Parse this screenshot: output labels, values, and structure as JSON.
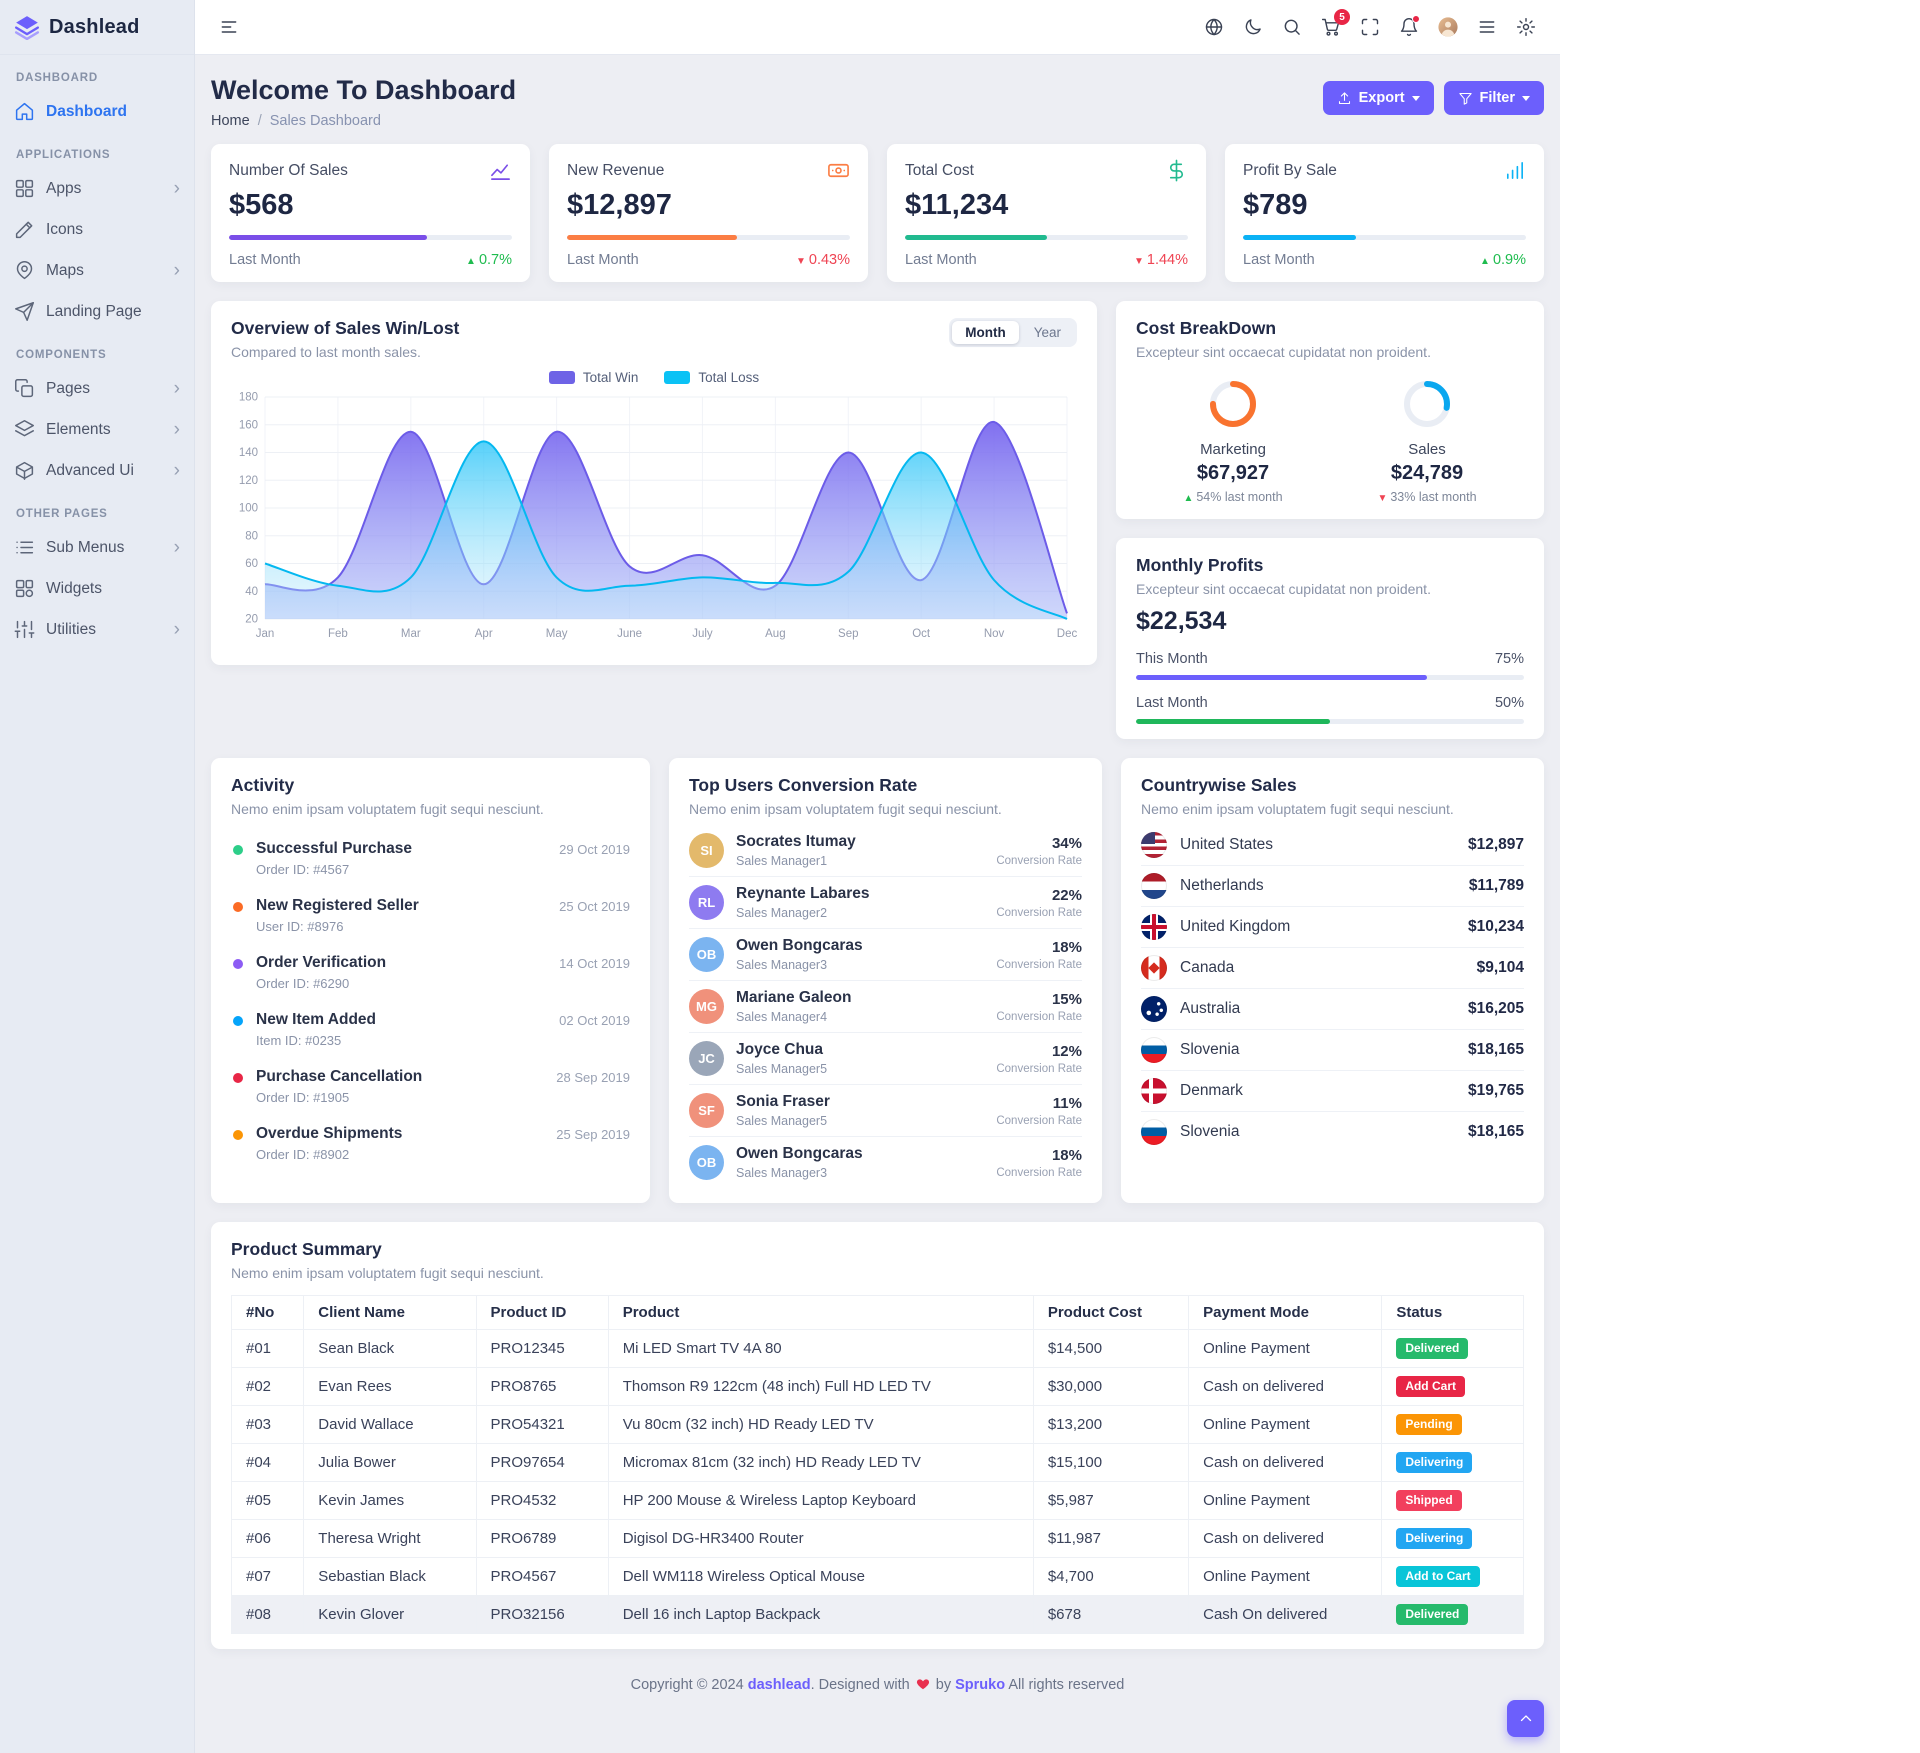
{
  "app": {
    "name": "Dashlead"
  },
  "sidebar": {
    "sections": [
      {
        "label": "DASHBOARD",
        "items": [
          {
            "label": "Dashboard",
            "icon": "home-icon",
            "state": "active"
          }
        ]
      },
      {
        "label": "APPLICATIONS",
        "items": [
          {
            "label": "Apps",
            "icon": "grid-icon",
            "arrow": true
          },
          {
            "label": "Icons",
            "icon": "pen-icon"
          },
          {
            "label": "Maps",
            "icon": "map-pin-icon",
            "arrow": true
          },
          {
            "label": "Landing Page",
            "icon": "plane-icon"
          }
        ]
      },
      {
        "label": "COMPONENTS",
        "items": [
          {
            "label": "Pages",
            "icon": "pages-icon",
            "arrow": true
          },
          {
            "label": "Elements",
            "icon": "layers-icon",
            "arrow": true
          },
          {
            "label": "Advanced Ui",
            "icon": "box-icon",
            "arrow": true
          }
        ]
      },
      {
        "label": "OTHER PAGES",
        "items": [
          {
            "label": "Sub Menus",
            "icon": "list-icon",
            "arrow": true
          },
          {
            "label": "Widgets",
            "icon": "widgets-icon"
          },
          {
            "label": "Utilities",
            "icon": "sliders-icon",
            "arrow": true
          }
        ]
      }
    ]
  },
  "header": {
    "icons": [
      {
        "name": "globe-icon"
      },
      {
        "name": "moon-icon"
      },
      {
        "name": "search-icon"
      },
      {
        "name": "cart-icon",
        "badge": "5"
      },
      {
        "name": "expand-icon"
      },
      {
        "name": "bell-icon",
        "dot": true
      },
      {
        "name": "avatar"
      },
      {
        "name": "sidenav-icon"
      },
      {
        "name": "gear-icon"
      }
    ]
  },
  "page": {
    "title": "Welcome To Dashboard",
    "breadcrumb": {
      "home": "Home",
      "separator": "/",
      "current": "Sales Dashboard"
    },
    "actions": {
      "export": "Export",
      "filter": "Filter"
    }
  },
  "stats": [
    {
      "label": "Number Of Sales",
      "icon": "chart-line-icon",
      "value": "$568",
      "color": "#7a4ee8",
      "progress": "70%",
      "period": "Last Month",
      "delta": "0.7%",
      "direction": "up"
    },
    {
      "label": "New Revenue",
      "icon": "cash-icon",
      "value": "$12,897",
      "color": "#fb7d44",
      "progress": "60%",
      "period": "Last Month",
      "delta": "0.43%",
      "direction": "down"
    },
    {
      "label": "Total Cost",
      "icon": "dollar-icon",
      "value": "$11,234",
      "color": "#21ba8f",
      "progress": "50%",
      "period": "Last Month",
      "delta": "1.44%",
      "direction": "down"
    },
    {
      "label": "Profit By Sale",
      "icon": "bar-chart-icon",
      "value": "$789",
      "color": "#0bb2f5",
      "progress": "40%",
      "period": "Last Month",
      "delta": "0.9%",
      "direction": "up"
    }
  ],
  "sales_chart": {
    "title": "Overview of Sales Win/Lost",
    "subtitle": "Compared to last month sales.",
    "legend": [
      {
        "label": "Total Win",
        "color": "#6e63e6"
      },
      {
        "label": "Total Loss",
        "color": "#0bc2f5"
      }
    ],
    "range_toggle": [
      {
        "label": "Month",
        "state": "active"
      },
      {
        "label": "Year",
        "state": ""
      }
    ]
  },
  "chart_data": {
    "type": "area",
    "title": "Overview of Sales Win/Lost",
    "x": [
      "Jan",
      "Feb",
      "Mar",
      "Apr",
      "May",
      "June",
      "July",
      "Aug",
      "Sep",
      "Oct",
      "Nov",
      "Dec"
    ],
    "ylim": [
      20,
      180
    ],
    "yticks": [
      20,
      40,
      60,
      80,
      100,
      120,
      140,
      160,
      180
    ],
    "grid": true,
    "legend_position": "top",
    "series": [
      {
        "name": "Total Win",
        "color": "#6c5ce8",
        "values": [
          45,
          50,
          155,
          45,
          155,
          58,
          66,
          44,
          140,
          48,
          162,
          24
        ]
      },
      {
        "name": "Total Loss",
        "color": "#04b8f0",
        "values": [
          60,
          44,
          50,
          148,
          50,
          44,
          50,
          46,
          54,
          140,
          48,
          20
        ]
      }
    ]
  },
  "cost_breakdown": {
    "title": "Cost BreakDown",
    "subtitle": "Excepteur sint occaecat cupidatat non proident.",
    "items": [
      {
        "label": "Marketing",
        "value": "$67,927",
        "delta": "54% last month",
        "direction": "up",
        "color": "#f9732f",
        "pct": 75
      },
      {
        "label": "Sales",
        "value": "$24,789",
        "delta": "33% last month",
        "direction": "down",
        "color": "#0aa7ef",
        "pct": 28
      }
    ]
  },
  "monthly_profits": {
    "title": "Monthly Profits",
    "subtitle": "Excepteur sint occaecat cupidatat non proident.",
    "value": "$22,534",
    "bars": [
      {
        "label": "This Month",
        "pct_label": "75%",
        "width": "75%",
        "color": "#6c5ffc"
      },
      {
        "label": "Last Month",
        "pct_label": "50%",
        "width": "50%",
        "color": "#1fb75b"
      }
    ]
  },
  "activity": {
    "title": "Activity",
    "subtitle": "Nemo enim ipsam voluptatem fugit sequi nesciunt.",
    "items": [
      {
        "title": "Successful Purchase",
        "detail": "Order ID: #4567",
        "date": "29 Oct 2019",
        "color": "#2dce89"
      },
      {
        "title": "New Registered Seller",
        "detail": "User ID: #8976",
        "date": "25 Oct 2019",
        "color": "#fb6b25"
      },
      {
        "title": "Order Verification",
        "detail": "Order ID: #6290",
        "date": "14 Oct 2019",
        "color": "#8c5cf4"
      },
      {
        "title": "New Item Added",
        "detail": "Item ID: #0235",
        "date": "02 Oct 2019",
        "color": "#05a4fa"
      },
      {
        "title": "Purchase Cancellation",
        "detail": "Order ID: #1905",
        "date": "28 Sep 2019",
        "color": "#e82646"
      },
      {
        "title": "Overdue Shipments",
        "detail": "Order ID: #8902",
        "date": "25 Sep 2019",
        "color": "#fb9505"
      }
    ]
  },
  "top_users": {
    "title": "Top Users Conversion Rate",
    "subtitle": "Nemo enim ipsam voluptatem fugit sequi nesciunt.",
    "rate_label": "Conversion Rate",
    "items": [
      {
        "name": "Socrates Itumay",
        "role": "Sales Manager1",
        "rate": "34%"
      },
      {
        "name": "Reynante Labares",
        "role": "Sales Manager2",
        "rate": "22%"
      },
      {
        "name": "Owen Bongcaras",
        "role": "Sales Manager3",
        "rate": "18%"
      },
      {
        "name": "Mariane Galeon",
        "role": "Sales Manager4",
        "rate": "15%"
      },
      {
        "name": "Joyce Chua",
        "role": "Sales Manager5",
        "rate": "12%"
      },
      {
        "name": "Sonia Fraser",
        "role": "Sales Manager5",
        "rate": "11%"
      },
      {
        "name": "Owen Bongcaras",
        "role": "Sales Manager3",
        "rate": "18%"
      }
    ]
  },
  "countrywise": {
    "title": "Countrywise Sales",
    "subtitle": "Nemo enim ipsam voluptatem fugit sequi nesciunt.",
    "items": [
      {
        "country": "United States",
        "flag": "us",
        "value": "$12,897"
      },
      {
        "country": "Netherlands",
        "flag": "nl",
        "value": "$11,789"
      },
      {
        "country": "United Kingdom",
        "flag": "uk",
        "value": "$10,234"
      },
      {
        "country": "Canada",
        "flag": "ca",
        "value": "$9,104"
      },
      {
        "country": "Australia",
        "flag": "au",
        "value": "$16,205"
      },
      {
        "country": "Slovenia",
        "flag": "si",
        "value": "$18,165"
      },
      {
        "country": "Denmark",
        "flag": "dk",
        "value": "$19,765"
      },
      {
        "country": "Slovenia",
        "flag": "si",
        "value": "$18,165"
      }
    ]
  },
  "product_summary": {
    "title": "Product Summary",
    "subtitle": "Nemo enim ipsam voluptatem fugit sequi nesciunt.",
    "columns": [
      "#No",
      "Client Name",
      "Product ID",
      "Product",
      "Product Cost",
      "Payment Mode",
      "Status"
    ],
    "rows": [
      {
        "no": "#01",
        "client": "Sean Black",
        "product_id": "PRO12345",
        "product": "Mi LED Smart TV 4A 80",
        "cost": "$14,500",
        "payment": "Online Payment",
        "status": "Delivered",
        "status_color": "#26ba6c",
        "state": ""
      },
      {
        "no": "#02",
        "client": "Evan Rees",
        "product_id": "PRO8765",
        "product": "Thomson R9 122cm (48 inch) Full HD LED TV",
        "cost": "$30,000",
        "payment": "Cash on delivered",
        "status": "Add Cart",
        "status_color": "#e82646",
        "state": ""
      },
      {
        "no": "#03",
        "client": "David Wallace",
        "product_id": "PRO54321",
        "product": "Vu 80cm (32 inch) HD Ready LED TV",
        "cost": "$13,200",
        "payment": "Online Payment",
        "status": "Pending",
        "status_color": "#fb9505",
        "state": ""
      },
      {
        "no": "#04",
        "client": "Julia Bower",
        "product_id": "PRO97654",
        "product": "Micromax 81cm (32 inch) HD Ready LED TV",
        "cost": "$15,100",
        "payment": "Cash on delivered",
        "status": "Delivering",
        "status_color": "#22a6f2",
        "state": ""
      },
      {
        "no": "#05",
        "client": "Kevin James",
        "product_id": "PRO4532",
        "product": "HP 200 Mouse & Wireless Laptop Keyboard",
        "cost": "$5,987",
        "payment": "Online Payment",
        "status": "Shipped",
        "status_color": "#f23f5d",
        "state": ""
      },
      {
        "no": "#06",
        "client": "Theresa Wright",
        "product_id": "PRO6789",
        "product": "Digisol DG-HR3400 Router",
        "cost": "$11,987",
        "payment": "Cash on delivered",
        "status": "Delivering",
        "status_color": "#22a6f2",
        "state": ""
      },
      {
        "no": "#07",
        "client": "Sebastian Black",
        "product_id": "PRO4567",
        "product": "Dell WM118 Wireless Optical Mouse",
        "cost": "$4,700",
        "payment": "Online Payment",
        "status": "Add to Cart",
        "status_color": "#09c5d8",
        "state": ""
      },
      {
        "no": "#08",
        "client": "Kevin Glover",
        "product_id": "PRO32156",
        "product": "Dell 16 inch Laptop Backpack",
        "cost": "$678",
        "payment": "Cash On delivered",
        "status": "Delivered",
        "status_color": "#26ba6c",
        "state": "highlight"
      }
    ]
  },
  "footer": {
    "prefix": "Copyright © 2024",
    "brand": "dashlead",
    "designed": ". Designed with",
    "by": "by",
    "designer": "Spruko",
    "rights": "All rights reserved"
  }
}
